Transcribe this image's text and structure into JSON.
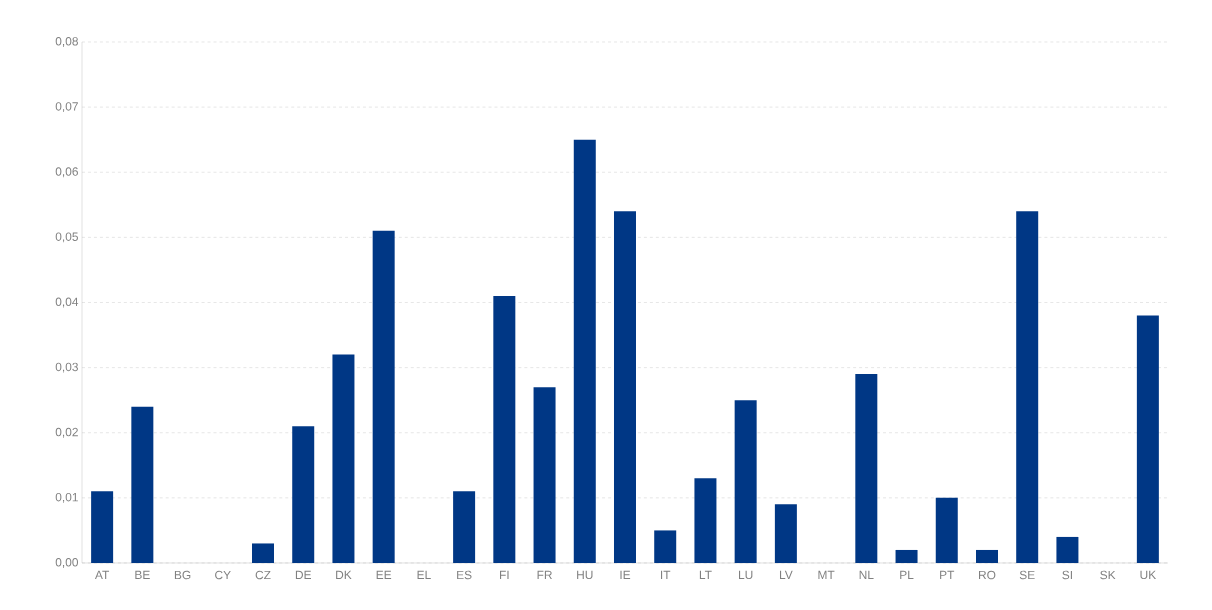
{
  "chart_data": {
    "type": "bar",
    "categories": [
      "AT",
      "BE",
      "BG",
      "CY",
      "CZ",
      "DE",
      "DK",
      "EE",
      "EL",
      "ES",
      "FI",
      "FR",
      "HU",
      "IE",
      "IT",
      "LT",
      "LU",
      "LV",
      "MT",
      "NL",
      "PL",
      "PT",
      "RO",
      "SE",
      "SI",
      "SK",
      "UK"
    ],
    "values": [
      0.011,
      0.024,
      0,
      0,
      0.003,
      0.021,
      0.032,
      0.051,
      0,
      0.011,
      0.041,
      0.027,
      0.065,
      0.054,
      0.005,
      0.013,
      0.025,
      0.009,
      0,
      0.029,
      0.002,
      0.01,
      0.002,
      0.054,
      0.004,
      0,
      0.038
    ],
    "color": "#003785",
    "ylim": [
      0,
      0.08
    ],
    "yticks": [
      {
        "value": 0,
        "label": "0,00"
      },
      {
        "value": 0.01,
        "label": "0,01"
      },
      {
        "value": 0.02,
        "label": "0,02"
      },
      {
        "value": 0.03,
        "label": "0,03"
      },
      {
        "value": 0.04,
        "label": "0,04"
      },
      {
        "value": 0.05,
        "label": "0,05"
      },
      {
        "value": 0.06,
        "label": "0,06"
      },
      {
        "value": 0.07,
        "label": "0,07"
      },
      {
        "value": 0.08,
        "label": "0,08"
      }
    ],
    "grid": "y"
  }
}
